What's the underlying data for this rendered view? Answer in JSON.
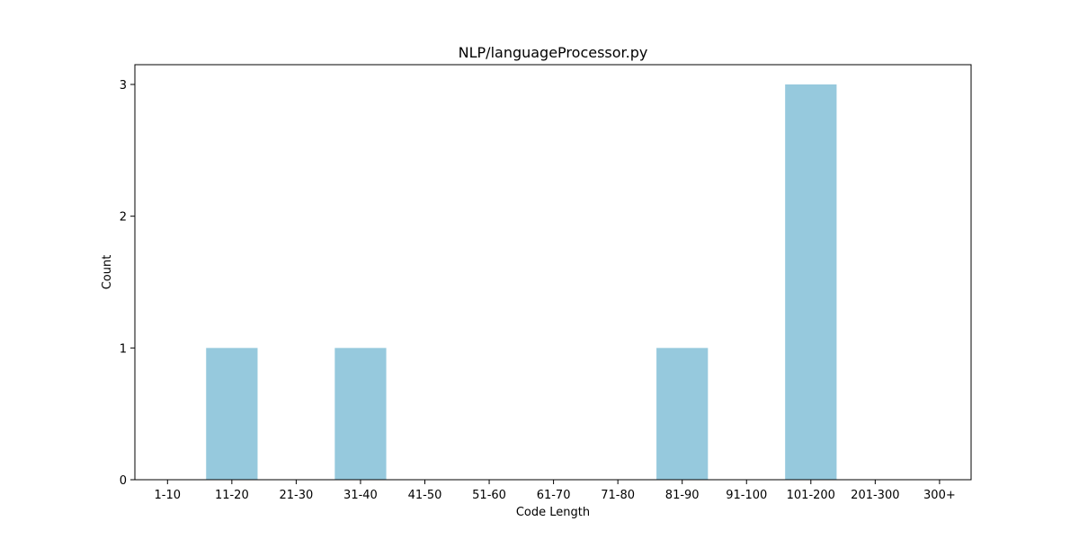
{
  "chart_data": {
    "type": "bar",
    "title": "NLP/languageProcessor.py",
    "xlabel": "Code Length",
    "ylabel": "Count",
    "categories": [
      "1-10",
      "11-20",
      "21-30",
      "31-40",
      "41-50",
      "51-60",
      "61-70",
      "71-80",
      "81-90",
      "91-100",
      "101-200",
      "201-300",
      "300+"
    ],
    "values": [
      0,
      1,
      0,
      1,
      0,
      0,
      0,
      0,
      1,
      0,
      3,
      0,
      0
    ],
    "ylim": [
      0,
      3.15
    ],
    "yticks": [
      0,
      1,
      2,
      3
    ],
    "bar_color": "#96c9dd",
    "grid": false,
    "legend": "none"
  }
}
